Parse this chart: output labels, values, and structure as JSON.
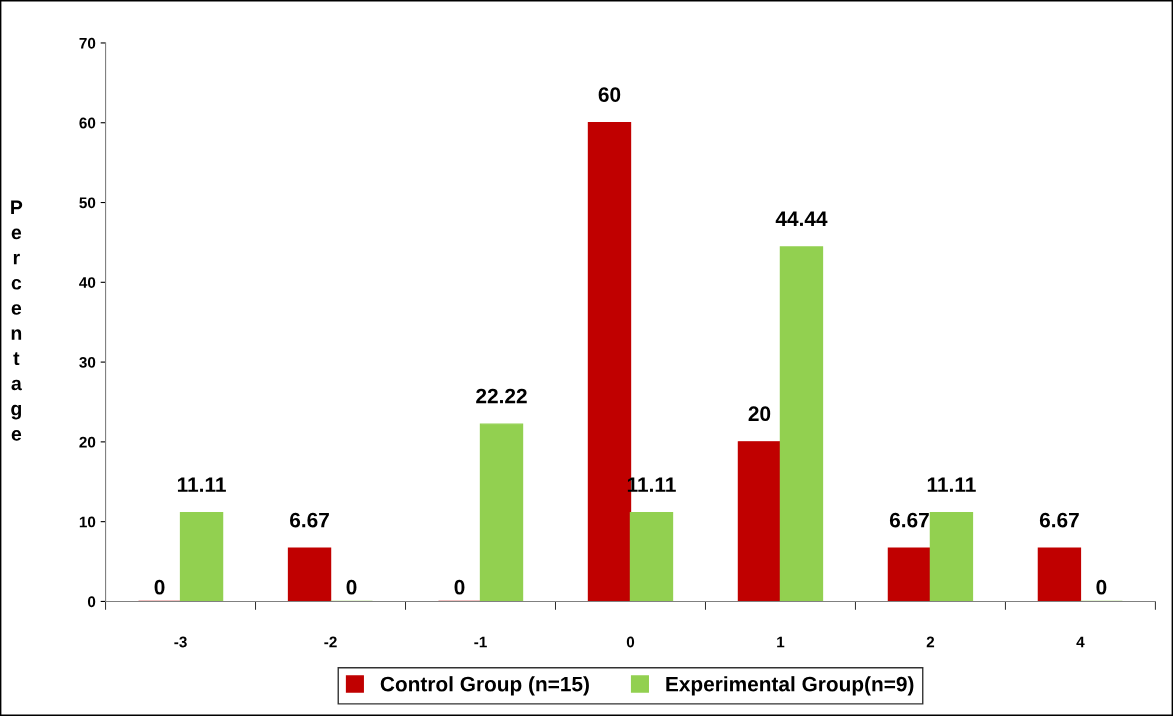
{
  "chart_data": {
    "type": "bar",
    "ylabel": "Percentage",
    "categories": [
      "-3",
      "-2",
      "-1",
      "0",
      "1",
      "2",
      "4"
    ],
    "series": [
      {
        "name": "Control Group (n=15)",
        "color": "#c00000",
        "values": [
          0,
          6.67,
          0,
          60,
          20,
          6.67,
          6.67
        ]
      },
      {
        "name": "Experimental Group(n=9)",
        "color": "#92d050",
        "values": [
          11.11,
          0,
          22.22,
          11.11,
          44.44,
          11.11,
          0
        ]
      }
    ],
    "ylim": [
      0,
      70
    ],
    "yticks": [
      0,
      10,
      20,
      30,
      40,
      50,
      60,
      70
    ],
    "data_labels": true,
    "grid": false,
    "legend": "bottom"
  }
}
